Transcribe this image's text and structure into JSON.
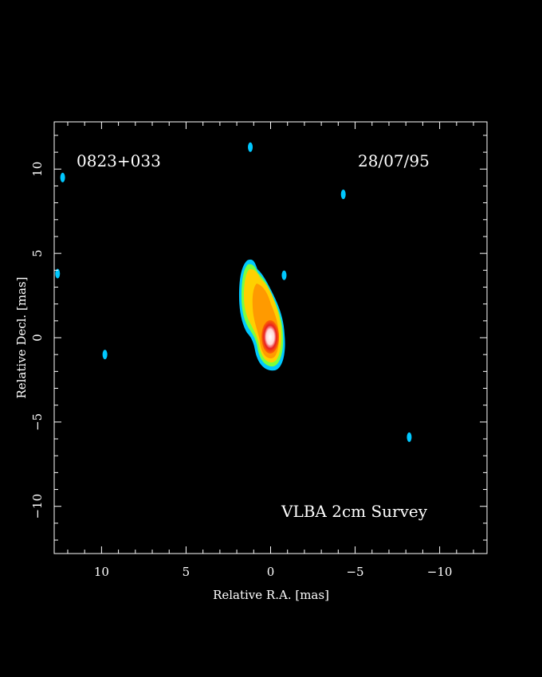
{
  "chart_data": {
    "type": "heatmap",
    "source_name": "0823+033",
    "date": "28/07/95",
    "survey_label": "VLBA 2cm Survey",
    "xlabel": "Relative R.A. [mas]",
    "ylabel": "Relative Decl. [mas]",
    "xlim": [
      12.8,
      -12.8
    ],
    "ylim": [
      -12.8,
      12.8
    ],
    "x_ticks": [
      10,
      5,
      0,
      -5,
      -10
    ],
    "x_tick_labels": [
      "10",
      "5",
      "0",
      "−5",
      "−10"
    ],
    "y_ticks": [
      10,
      5,
      0,
      -5,
      -10
    ],
    "y_tick_labels": [
      "10",
      "5",
      "0",
      "−5",
      "−10"
    ],
    "colors": {
      "background": "#000000",
      "frame": "#ffffff",
      "level_low": "#00c8ff",
      "level_mid": "#7cff3c",
      "level_upper": "#ffd000",
      "level_high": "#ff8a00",
      "level_peak": "#e82020",
      "level_core": "#fff0f0"
    },
    "components": [
      {
        "x": 0.0,
        "y": 0.0,
        "kind": "core"
      },
      {
        "x": 0.6,
        "y": 1.5,
        "kind": "jet"
      },
      {
        "x": 1.1,
        "y": 3.0,
        "kind": "jet"
      }
    ],
    "noise_spots": [
      {
        "x": 12.3,
        "y": 9.5
      },
      {
        "x": 1.2,
        "y": 11.3
      },
      {
        "x": -4.3,
        "y": 8.5
      },
      {
        "x": 9.8,
        "y": -1.0
      },
      {
        "x": -8.2,
        "y": -5.9
      },
      {
        "x": -0.8,
        "y": 3.7
      },
      {
        "x": 12.6,
        "y": 3.8
      }
    ]
  }
}
